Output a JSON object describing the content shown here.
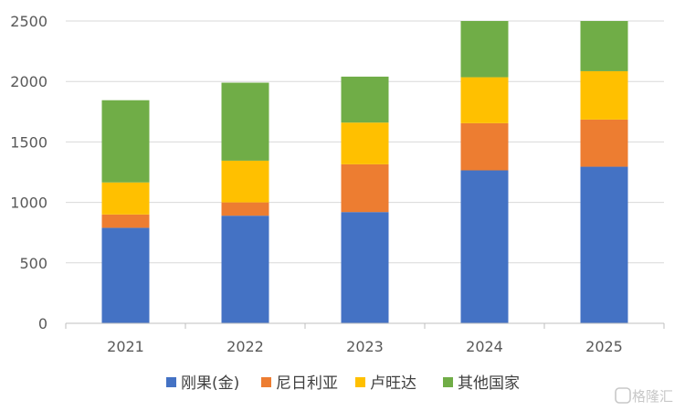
{
  "chart_data": {
    "type": "bar",
    "stacked": true,
    "categories": [
      "2021",
      "2022",
      "2023",
      "2024",
      "2025"
    ],
    "series": [
      {
        "name": "刚果(金)",
        "color": "#4472c4",
        "values": [
          790,
          890,
          920,
          1265,
          1295
        ]
      },
      {
        "name": "尼日利亚",
        "color": "#ed7d31",
        "values": [
          110,
          110,
          395,
          390,
          390
        ]
      },
      {
        "name": "卢旺达",
        "color": "#ffc000",
        "values": [
          265,
          345,
          345,
          380,
          400
        ]
      },
      {
        "name": "其他国家",
        "color": "#70ad47",
        "values": [
          680,
          645,
          380,
          465,
          415
        ]
      }
    ],
    "ylim": [
      0,
      2500
    ],
    "yticks": [
      0,
      500,
      1000,
      1500,
      2000,
      2500
    ],
    "grid": true,
    "legend": "bottom"
  },
  "watermark": {
    "text": "格隆汇",
    "icon": "g-logo-icon"
  }
}
